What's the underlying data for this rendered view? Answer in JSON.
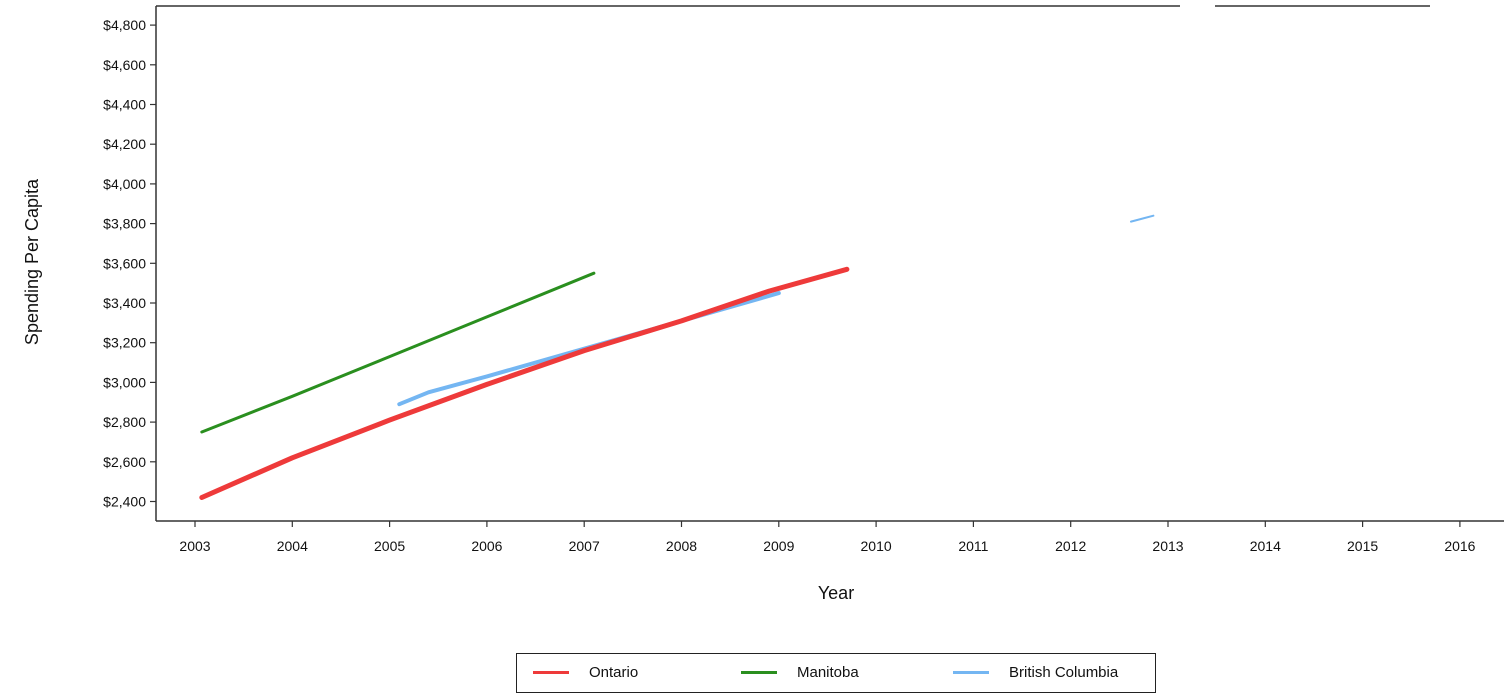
{
  "chart_data": {
    "type": "line",
    "xlabel": "Year",
    "ylabel": "Spending Per Capita",
    "x_ticks": [
      "2003",
      "2004",
      "2005",
      "2006",
      "2007",
      "2008",
      "2009",
      "2010",
      "2011",
      "2012",
      "2013",
      "2014",
      "2015",
      "2016"
    ],
    "y_ticks": [
      "$2,400",
      "$2,600",
      "$2,800",
      "$3,000",
      "$3,200",
      "$3,400",
      "$3,600",
      "$3,800",
      "$4,000",
      "$4,200",
      "$4,400",
      "$4,600",
      "$4,800"
    ],
    "xlim": [
      2002.6,
      2016.3
    ],
    "ylim": [
      2300,
      4900
    ],
    "grid": false,
    "legend_position": "bottom",
    "series": [
      {
        "name": "Ontario",
        "color": "#ee3a3a",
        "x": [
          2003.07,
          2004,
          2005,
          2006,
          2007,
          2008,
          2008.9,
          2009.7
        ],
        "y": [
          2420,
          2620,
          2810,
          2990,
          3160,
          3310,
          3460,
          3570
        ]
      },
      {
        "name": "Manitoba",
        "color": "#2a8f1f",
        "x": [
          2003.07,
          2004,
          2005,
          2006,
          2007.1
        ],
        "y": [
          2750,
          2930,
          3130,
          3330,
          3550
        ]
      },
      {
        "name": "British Columbia",
        "color": "#74b6f2",
        "x": [
          2005.1,
          2005.4,
          2006,
          2007,
          2008,
          2009
        ],
        "y": [
          2890,
          2950,
          3030,
          3170,
          3310,
          3450
        ],
        "x2": [
          2012.62,
          2012.85
        ],
        "y2": [
          3810,
          3840
        ]
      }
    ]
  },
  "legend": {
    "items": [
      {
        "label": "Ontario",
        "color": "#ee3a3a"
      },
      {
        "label": "Manitoba",
        "color": "#2a8f1f"
      },
      {
        "label": "British Columbia",
        "color": "#74b6f2"
      }
    ]
  }
}
